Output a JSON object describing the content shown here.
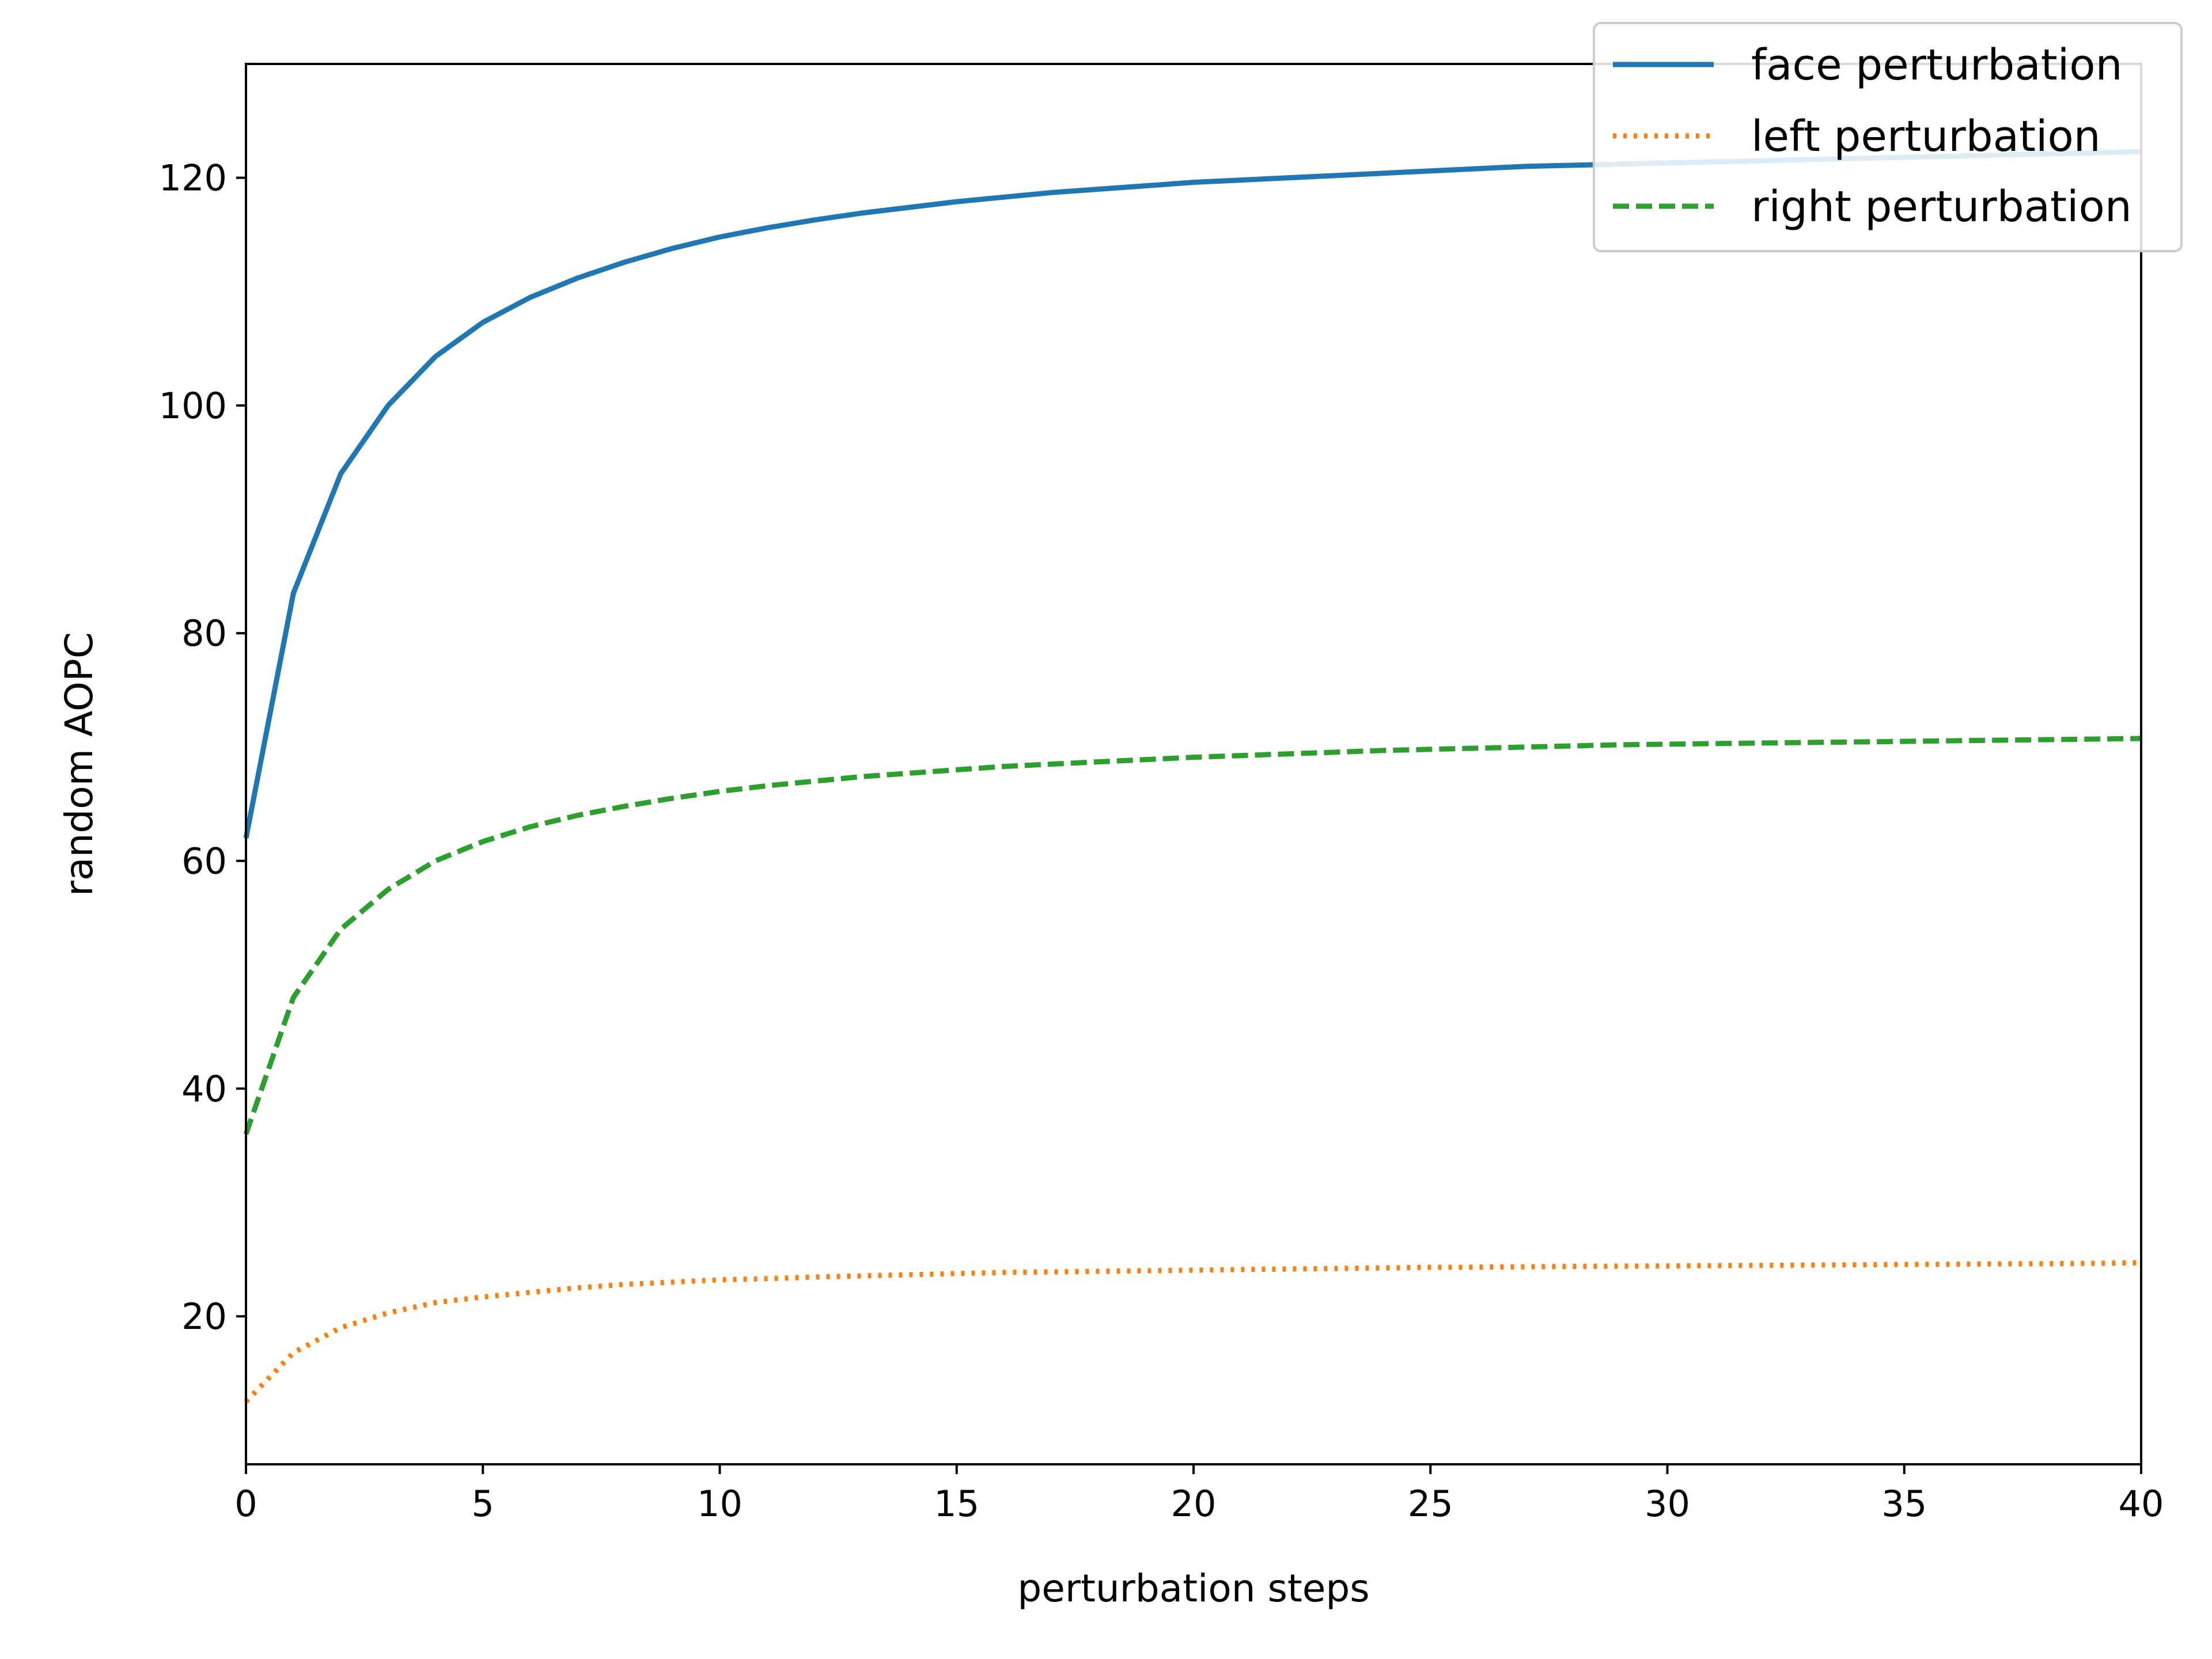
{
  "chart_data": {
    "type": "line",
    "xlabel": "perturbation steps",
    "ylabel": "random AOPC",
    "xlim": [
      0,
      40
    ],
    "ylim": [
      7,
      130
    ],
    "xticks": [
      0,
      5,
      10,
      15,
      20,
      25,
      30,
      35,
      40
    ],
    "yticks": [
      20,
      40,
      60,
      80,
      100,
      120
    ],
    "grid": false,
    "legend_position": "top-right",
    "x": [
      0,
      1,
      2,
      3,
      4,
      5,
      6,
      7,
      8,
      9,
      10,
      11,
      12,
      13,
      14,
      15,
      16,
      17,
      18,
      19,
      20,
      21,
      22,
      23,
      24,
      25,
      26,
      27,
      28,
      29,
      30,
      31,
      32,
      33,
      34,
      35,
      36,
      37,
      38,
      39,
      40
    ],
    "series": [
      {
        "name": "face perturbation",
        "color": "#1f77b4",
        "style": "solid",
        "values": [
          62.0,
          83.5,
          94.0,
          100.0,
          104.3,
          107.3,
          109.5,
          111.2,
          112.6,
          113.8,
          114.8,
          115.6,
          116.3,
          116.9,
          117.4,
          117.9,
          118.3,
          118.7,
          119.0,
          119.3,
          119.6,
          119.8,
          120.0,
          120.2,
          120.4,
          120.6,
          120.8,
          121.0,
          121.1,
          121.2,
          121.3,
          121.4,
          121.5,
          121.6,
          121.7,
          121.8,
          121.9,
          122.0,
          122.1,
          122.2,
          122.3
        ]
      },
      {
        "name": "left perturbation",
        "color": "#ff7f0e",
        "style": "dotted",
        "values": [
          12.5,
          16.8,
          19.0,
          20.3,
          21.2,
          21.7,
          22.1,
          22.5,
          22.8,
          23.0,
          23.2,
          23.3,
          23.45,
          23.55,
          23.65,
          23.75,
          23.85,
          23.9,
          23.95,
          24.0,
          24.05,
          24.1,
          24.15,
          24.2,
          24.25,
          24.3,
          24.32,
          24.35,
          24.38,
          24.4,
          24.42,
          24.45,
          24.47,
          24.5,
          24.52,
          24.55,
          24.57,
          24.6,
          24.62,
          24.65,
          24.7
        ]
      },
      {
        "name": "right perturbation",
        "color": "#2ca02c",
        "style": "dashed",
        "values": [
          36.0,
          48.0,
          54.0,
          57.5,
          60.0,
          61.7,
          63.0,
          64.0,
          64.8,
          65.5,
          66.1,
          66.6,
          67.0,
          67.4,
          67.7,
          68.0,
          68.3,
          68.5,
          68.7,
          68.9,
          69.1,
          69.25,
          69.4,
          69.55,
          69.7,
          69.8,
          69.9,
          70.0,
          70.1,
          70.2,
          70.25,
          70.3,
          70.35,
          70.4,
          70.45,
          70.5,
          70.55,
          70.6,
          70.65,
          70.7,
          70.75
        ]
      }
    ]
  }
}
